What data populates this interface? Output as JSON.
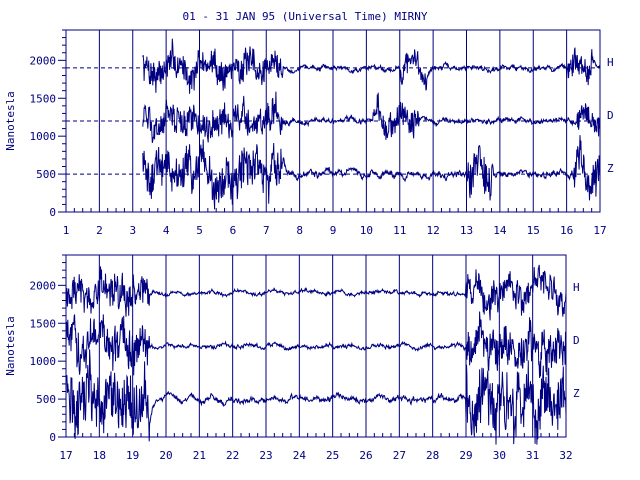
{
  "title": "01 - 31 JAN 95 (Universal Time) MIRNY",
  "colors": {
    "ink": "#000080",
    "background": "#ffffff"
  },
  "chart_data": [
    {
      "type": "line",
      "panel": "top",
      "ylabel": "Nanotesla",
      "ylim": [
        0,
        2400
      ],
      "yticks": [
        0,
        500,
        1000,
        1500,
        2000
      ],
      "xlim": [
        1,
        17
      ],
      "xticks": [
        "1",
        "2",
        "3",
        "4",
        "5",
        "6",
        "7",
        "8",
        "9",
        "10",
        "11",
        "12",
        "13",
        "14",
        "15",
        "16",
        "17"
      ],
      "data_start_day": 3.3,
      "baselines": [
        1900,
        1200,
        500
      ],
      "grid": "vertical lines at each day; dashed horizontal baselines",
      "series": [
        {
          "name": "H",
          "baseline": 1900,
          "quiet_amplitude": 60,
          "disturbed_amplitude": 250,
          "disturbed_intervals": [
            [
              3.3,
              7.5
            ],
            [
              11.0,
              11.8
            ],
            [
              16.0,
              16.8
            ]
          ]
        },
        {
          "name": "D",
          "baseline": 1200,
          "quiet_amplitude": 60,
          "disturbed_amplitude": 250,
          "disturbed_intervals": [
            [
              3.3,
              7.5
            ],
            [
              10.2,
              11.6
            ],
            [
              16.3,
              17.0
            ]
          ]
        },
        {
          "name": "Z",
          "baseline": 500,
          "quiet_amplitude": 80,
          "disturbed_amplitude": 350,
          "disturbed_intervals": [
            [
              3.3,
              7.5
            ],
            [
              13.0,
              13.8
            ],
            [
              16.2,
              17.0
            ]
          ]
        }
      ]
    },
    {
      "type": "line",
      "panel": "bottom",
      "ylabel": "Nanotesla",
      "ylim": [
        0,
        2400
      ],
      "yticks": [
        0,
        500,
        1000,
        1500,
        2000
      ],
      "xlim": [
        17,
        32
      ],
      "xticks": [
        "17",
        "18",
        "19",
        "20",
        "21",
        "22",
        "23",
        "24",
        "25",
        "26",
        "27",
        "28",
        "29",
        "30",
        "31",
        "32"
      ],
      "data_start_day": 17.0,
      "baselines": [
        1900,
        1200,
        500
      ],
      "grid": "vertical lines at each day; no horizontal baselines",
      "series": [
        {
          "name": "H",
          "baseline": 1900,
          "quiet_amplitude": 50,
          "disturbed_amplitude": 280,
          "disturbed_intervals": [
            [
              17.0,
              19.5
            ],
            [
              29.0,
              32.0
            ]
          ]
        },
        {
          "name": "D",
          "baseline": 1200,
          "quiet_amplitude": 50,
          "disturbed_amplitude": 350,
          "disturbed_intervals": [
            [
              17.0,
              19.5
            ],
            [
              29.0,
              32.0
            ]
          ]
        },
        {
          "name": "Z",
          "baseline": 500,
          "quiet_amplitude": 70,
          "disturbed_amplitude": 500,
          "disturbed_intervals": [
            [
              17.0,
              19.5
            ],
            [
              29.0,
              32.0
            ]
          ]
        }
      ]
    }
  ]
}
